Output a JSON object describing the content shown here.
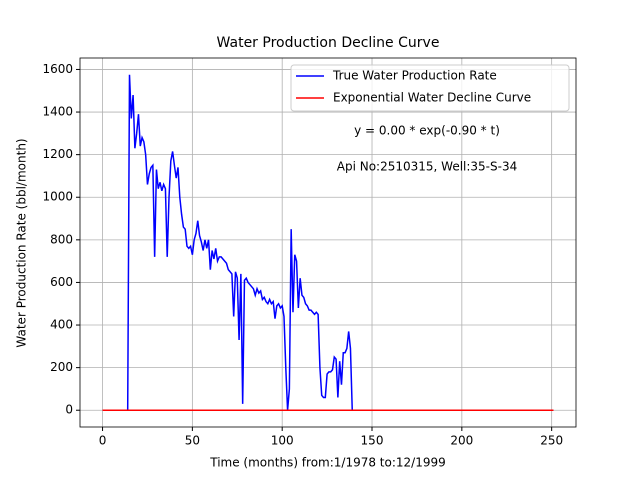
{
  "chart_data": {
    "type": "line",
    "title": "Water Production Decline Curve",
    "xlabel": "Time (months) from:1/1978 to:12/1999",
    "ylabel": "Water Production Rate (bbl/month)",
    "annotations": [
      "y = 0.00 * exp(-0.90 * t)",
      "Api No:2510315, Well:35-S-34"
    ],
    "xlim": [
      -12.55,
      263.55
    ],
    "xticks": [
      0,
      50,
      100,
      150,
      200,
      250
    ],
    "ylim": [
      -78.75,
      1653.75
    ],
    "yticks": [
      0,
      200,
      400,
      600,
      800,
      1000,
      1200,
      1400,
      1600
    ],
    "grid": true,
    "legend": "upper right",
    "series": [
      {
        "name": "True Water Production Rate",
        "color": "#0000ff",
        "x": [
          0,
          14,
          15,
          16,
          17,
          18,
          19,
          20,
          21,
          22,
          23,
          24,
          25,
          26,
          27,
          28,
          29,
          30,
          31,
          32,
          33,
          34,
          35,
          36,
          37,
          38,
          39,
          40,
          41,
          42,
          43,
          44,
          45,
          46,
          47,
          48,
          49,
          50,
          51,
          52,
          53,
          54,
          55,
          56,
          57,
          58,
          59,
          60,
          61,
          62,
          63,
          64,
          65,
          66,
          67,
          68,
          69,
          70,
          71,
          72,
          73,
          74,
          75,
          76,
          77,
          78,
          79,
          80,
          81,
          82,
          83,
          84,
          85,
          86,
          87,
          88,
          89,
          90,
          91,
          92,
          93,
          94,
          95,
          96,
          97,
          98,
          99,
          100,
          101,
          102,
          103,
          104,
          105,
          106,
          107,
          108,
          109,
          110,
          111,
          112,
          113,
          114,
          115,
          116,
          117,
          118,
          119,
          120,
          121,
          122,
          123,
          124,
          125,
          126,
          127,
          128,
          129,
          130,
          131,
          132,
          133,
          134,
          135,
          136,
          137,
          138,
          139,
          251
        ],
        "values": [
          0,
          0,
          1575,
          1370,
          1480,
          1230,
          1300,
          1390,
          1240,
          1280,
          1260,
          1200,
          1060,
          1110,
          1140,
          1150,
          720,
          1130,
          1040,
          1070,
          1030,
          1060,
          1040,
          720,
          1000,
          1170,
          1215,
          1150,
          1090,
          1140,
          1000,
          920,
          860,
          850,
          770,
          760,
          770,
          730,
          800,
          830,
          890,
          820,
          790,
          750,
          800,
          760,
          800,
          660,
          750,
          710,
          760,
          700,
          720,
          720,
          710,
          700,
          690,
          660,
          650,
          640,
          440,
          650,
          620,
          330,
          640,
          30,
          610,
          620,
          600,
          590,
          580,
          570,
          540,
          570,
          550,
          560,
          520,
          530,
          510,
          500,
          520,
          500,
          510,
          430,
          490,
          500,
          480,
          490,
          440,
          200,
          0,
          100,
          850,
          460,
          730,
          700,
          480,
          620,
          540,
          530,
          500,
          490,
          470,
          470,
          460,
          450,
          460,
          450,
          200,
          70,
          60,
          60,
          170,
          180,
          180,
          190,
          250,
          240,
          60,
          230,
          120,
          270,
          270,
          290,
          370,
          290,
          0,
          0
        ]
      },
      {
        "name": "Exponential Water Decline Curve",
        "color": "#ff0000",
        "x": [
          0,
          251
        ],
        "values": [
          0,
          0
        ]
      }
    ]
  }
}
